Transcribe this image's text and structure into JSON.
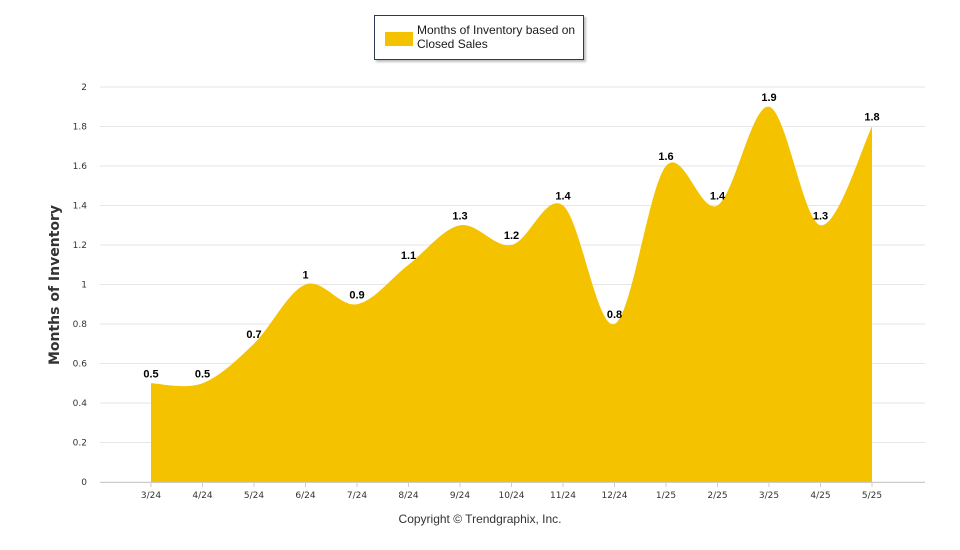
{
  "legend": {
    "label": "Months of Inventory based on Closed Sales"
  },
  "footer": {
    "copyright": "Copyright © Trendgraphix, Inc."
  },
  "colors": {
    "series": "#f5c200",
    "grid": "#e6e6e6",
    "axis_text": "#333333",
    "label_text": "#000000"
  },
  "chart_data": {
    "type": "area",
    "title": "",
    "xlabel": "",
    "ylabel": "Months of Inventory",
    "ylim": [
      0,
      2
    ],
    "yticks": [
      "0",
      "0.2",
      "0.4",
      "0.6",
      "0.8",
      "1",
      "1.2",
      "1.4",
      "1.6",
      "1.8",
      "2"
    ],
    "grid": true,
    "legend_position": "top-center",
    "categories": [
      "3/24",
      "4/24",
      "5/24",
      "6/24",
      "7/24",
      "8/24",
      "9/24",
      "10/24",
      "11/24",
      "12/24",
      "1/25",
      "2/25",
      "3/25",
      "4/25",
      "5/25"
    ],
    "series": [
      {
        "name": "Months of Inventory based on Closed Sales",
        "values": [
          0.5,
          0.5,
          0.7,
          1,
          0.9,
          1.1,
          1.3,
          1.2,
          1.4,
          0.8,
          1.6,
          1.4,
          1.9,
          1.3,
          1.8
        ],
        "data_labels": [
          "0.5",
          "0.5",
          "0.7",
          "1",
          "0.9",
          "1.1",
          "1.3",
          "1.2",
          "1.4",
          "0.8",
          "1.6",
          "1.4",
          "1.9",
          "1.3",
          "1.8"
        ]
      }
    ]
  }
}
